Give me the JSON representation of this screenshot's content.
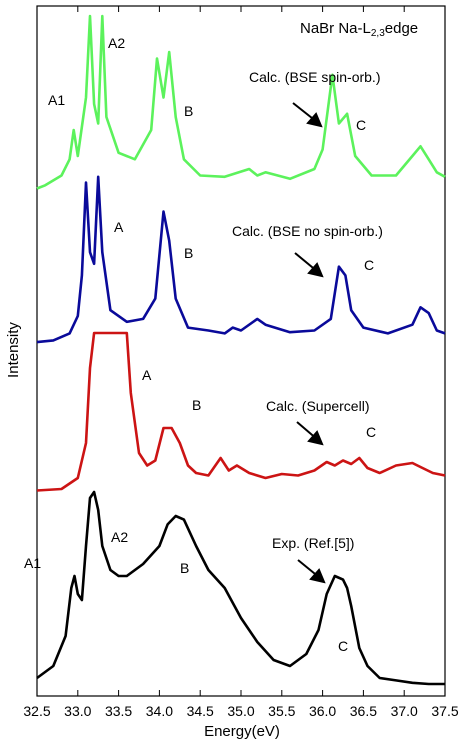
{
  "chart_data": {
    "type": "line",
    "title": "NaBr Na-L",
    "title_sub": "2,3",
    "title_tail": "edge",
    "xlabel": "Energy(eV)",
    "ylabel": "Intensity",
    "xlim": [
      32.5,
      37.5
    ],
    "x_ticks": [
      "32.5",
      "33.0",
      "33.5",
      "34.0",
      "34.5",
      "35.0",
      "35.5",
      "36.0",
      "36.5",
      "37.0",
      "37.5"
    ],
    "series": [
      {
        "name": "Calc. (BSE spin-orb.)",
        "color": "#5cf25c",
        "peak_labels": [
          "A1",
          "A2",
          "B",
          "C"
        ],
        "x": [
          32.5,
          32.6,
          32.8,
          32.9,
          32.95,
          33.0,
          33.1,
          33.15,
          33.2,
          33.25,
          33.3,
          33.35,
          33.5,
          33.7,
          33.9,
          33.97,
          34.05,
          34.12,
          34.2,
          34.3,
          34.5,
          34.8,
          35.1,
          35.2,
          35.3,
          35.6,
          35.9,
          36.0,
          36.12,
          36.2,
          36.3,
          36.4,
          36.6,
          36.9,
          37.1,
          37.2,
          37.3,
          37.4,
          37.5
        ],
        "y": [
          0.1,
          0.15,
          0.3,
          0.55,
          1.0,
          0.6,
          1.5,
          2.85,
          1.4,
          1.1,
          2.8,
          1.2,
          0.65,
          0.55,
          1.0,
          2.1,
          1.5,
          2.2,
          1.2,
          0.55,
          0.3,
          0.28,
          0.4,
          0.3,
          0.35,
          0.25,
          0.4,
          0.7,
          1.85,
          1.1,
          1.25,
          0.6,
          0.3,
          0.3,
          0.6,
          0.75,
          0.55,
          0.35,
          0.28
        ]
      },
      {
        "name": "Calc. (BSE no spin-orb.)",
        "color": "#0a0a9a",
        "peak_labels": [
          "A",
          "B",
          "C"
        ],
        "x": [
          32.5,
          32.7,
          32.9,
          33.0,
          33.05,
          33.1,
          33.15,
          33.2,
          33.25,
          33.3,
          33.4,
          33.6,
          33.8,
          33.95,
          34.05,
          34.12,
          34.2,
          34.35,
          34.6,
          34.8,
          34.9,
          35.0,
          35.2,
          35.3,
          35.6,
          35.9,
          36.1,
          36.2,
          36.28,
          36.35,
          36.5,
          36.8,
          37.1,
          37.2,
          37.3,
          37.4,
          37.5
        ],
        "y": [
          0.05,
          0.08,
          0.2,
          0.5,
          1.2,
          2.8,
          1.6,
          1.4,
          2.9,
          1.6,
          0.6,
          0.4,
          0.45,
          0.8,
          2.3,
          1.8,
          0.8,
          0.3,
          0.25,
          0.2,
          0.3,
          0.25,
          0.45,
          0.35,
          0.22,
          0.25,
          0.45,
          1.35,
          1.2,
          0.6,
          0.3,
          0.2,
          0.35,
          0.65,
          0.55,
          0.25,
          0.2
        ]
      },
      {
        "name": "Calc. (Supercell)",
        "color": "#cc1414",
        "peak_labels": [
          "A",
          "B",
          "C"
        ],
        "x": [
          32.5,
          32.8,
          33.0,
          33.1,
          33.15,
          33.2,
          33.25,
          33.3,
          33.55,
          33.6,
          33.65,
          33.75,
          33.85,
          33.95,
          34.05,
          34.15,
          34.25,
          34.35,
          34.45,
          34.6,
          34.75,
          34.85,
          34.95,
          35.1,
          35.3,
          35.5,
          35.7,
          35.9,
          36.05,
          36.15,
          36.25,
          36.35,
          36.45,
          36.55,
          36.7,
          36.9,
          37.1,
          37.2,
          37.35,
          37.5
        ],
        "y": [
          0.05,
          0.08,
          0.3,
          1.0,
          2.5,
          3.2,
          3.2,
          3.2,
          3.2,
          3.2,
          2.0,
          0.8,
          0.55,
          0.65,
          1.3,
          1.3,
          1.0,
          0.55,
          0.4,
          0.35,
          0.7,
          0.45,
          0.55,
          0.4,
          0.3,
          0.38,
          0.35,
          0.45,
          0.62,
          0.55,
          0.65,
          0.58,
          0.7,
          0.5,
          0.4,
          0.55,
          0.6,
          0.52,
          0.4,
          0.35
        ]
      },
      {
        "name": "Exp. (Ref.[5])",
        "color": "#000000",
        "peak_labels": [
          "A1",
          "A2",
          "B",
          "C"
        ],
        "x": [
          32.5,
          32.7,
          32.85,
          32.92,
          32.96,
          33.0,
          33.05,
          33.1,
          33.15,
          33.2,
          33.25,
          33.3,
          33.4,
          33.5,
          33.6,
          33.8,
          34.0,
          34.1,
          34.2,
          34.3,
          34.45,
          34.6,
          34.8,
          35.0,
          35.2,
          35.4,
          35.6,
          35.8,
          35.95,
          36.05,
          36.15,
          36.25,
          36.3,
          36.35,
          36.45,
          36.55,
          36.7,
          36.9,
          37.1,
          37.3,
          37.5
        ],
        "y": [
          0.1,
          0.2,
          0.45,
          0.85,
          0.95,
          0.8,
          0.75,
          1.2,
          1.6,
          1.65,
          1.5,
          1.2,
          1.0,
          0.95,
          0.95,
          1.05,
          1.2,
          1.38,
          1.45,
          1.42,
          1.2,
          1.0,
          0.85,
          0.6,
          0.4,
          0.25,
          0.2,
          0.3,
          0.5,
          0.8,
          0.95,
          0.92,
          0.85,
          0.7,
          0.35,
          0.2,
          0.1,
          0.08,
          0.06,
          0.05,
          0.05
        ]
      }
    ],
    "arrow_labels": [
      "Calc. (BSE spin-orb.)",
      "Calc. (BSE no spin-orb.)",
      "Calc. (Supercell)",
      "Exp. (Ref.[5])"
    ],
    "grid": false,
    "y_ticks_shown": false
  }
}
